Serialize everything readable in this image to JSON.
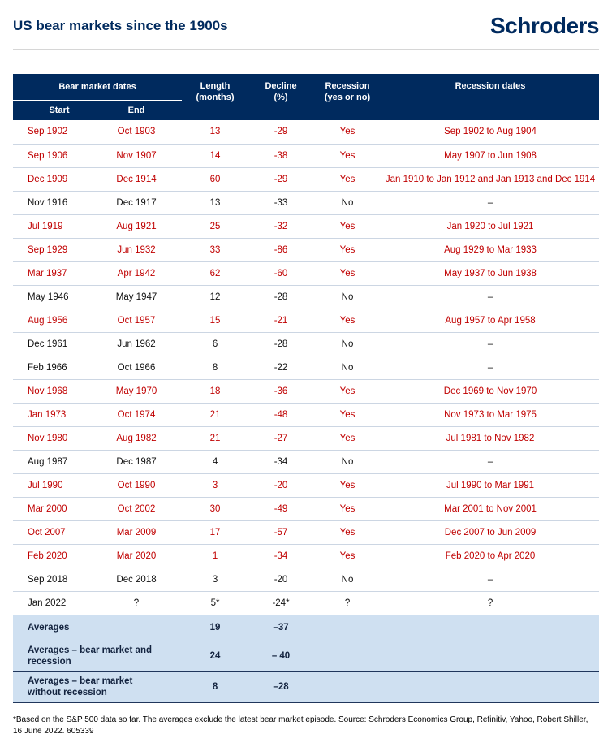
{
  "page": {
    "title": "US bear markets since the 1900s",
    "logo_text": "Schroders",
    "footnote": "*Based on the S&P 500 data so far. The averages exclude the latest bear market episode. Source: Schroders Economics Group, Refinitiv, Yahoo, Robert Shiller, 16 June 2022. 605339"
  },
  "colors": {
    "navy": "#002a5e",
    "red": "#c00000",
    "summary_bg": "#cfe0f1"
  },
  "chart_data": {
    "type": "table",
    "title": "US bear markets since the 1900s",
    "header": {
      "group": "Bear market dates",
      "start": "Start",
      "end": "End",
      "length_line1": "Length",
      "length_line2": "(months)",
      "decline_line1": "Decline",
      "decline_line2": "(%)",
      "recession_line1": "Recession",
      "recession_line2": "(yes or no)",
      "recession_dates": "Recession dates"
    },
    "rows": [
      {
        "start": "Sep 1902",
        "end": "Oct 1903",
        "length": "13",
        "decline": "-29",
        "recession": "Yes",
        "recession_dates": "Sep 1902 to Aug 1904",
        "red": true
      },
      {
        "start": "Sep 1906",
        "end": "Nov 1907",
        "length": "14",
        "decline": "-38",
        "recession": "Yes",
        "recession_dates": "May 1907 to Jun 1908",
        "red": true
      },
      {
        "start": "Dec 1909",
        "end": "Dec 1914",
        "length": "60",
        "decline": "-29",
        "recession": "Yes",
        "recession_dates": "Jan 1910 to Jan 1912 and Jan 1913 and Dec 1914",
        "red": true
      },
      {
        "start": "Nov 1916",
        "end": "Dec 1917",
        "length": "13",
        "decline": "-33",
        "recession": "No",
        "recession_dates": "–",
        "red": false
      },
      {
        "start": "Jul 1919",
        "end": "Aug 1921",
        "length": "25",
        "decline": "-32",
        "recession": "Yes",
        "recession_dates": "Jan 1920 to Jul 1921",
        "red": true
      },
      {
        "start": "Sep 1929",
        "end": "Jun 1932",
        "length": "33",
        "decline": "-86",
        "recession": "Yes",
        "recession_dates": "Aug 1929 to Mar 1933",
        "red": true
      },
      {
        "start": "Mar 1937",
        "end": "Apr 1942",
        "length": "62",
        "decline": "-60",
        "recession": "Yes",
        "recession_dates": "May 1937 to Jun 1938",
        "red": true
      },
      {
        "start": "May 1946",
        "end": "May 1947",
        "length": "12",
        "decline": "-28",
        "recession": "No",
        "recession_dates": "–",
        "red": false
      },
      {
        "start": "Aug 1956",
        "end": "Oct 1957",
        "length": "15",
        "decline": "-21",
        "recession": "Yes",
        "recession_dates": "Aug 1957 to Apr 1958",
        "red": true
      },
      {
        "start": "Dec 1961",
        "end": "Jun 1962",
        "length": "6",
        "decline": "-28",
        "recession": "No",
        "recession_dates": "–",
        "red": false
      },
      {
        "start": "Feb 1966",
        "end": "Oct 1966",
        "length": "8",
        "decline": "-22",
        "recession": "No",
        "recession_dates": "–",
        "red": false
      },
      {
        "start": "Nov 1968",
        "end": "May 1970",
        "length": "18",
        "decline": "-36",
        "recession": "Yes",
        "recession_dates": "Dec 1969 to Nov 1970",
        "red": true
      },
      {
        "start": "Jan 1973",
        "end": "Oct 1974",
        "length": "21",
        "decline": "-48",
        "recession": "Yes",
        "recession_dates": "Nov 1973 to Mar 1975",
        "red": true
      },
      {
        "start": "Nov 1980",
        "end": "Aug 1982",
        "length": "21",
        "decline": "-27",
        "recession": "Yes",
        "recession_dates": "Jul 1981 to Nov 1982",
        "red": true
      },
      {
        "start": "Aug 1987",
        "end": "Dec 1987",
        "length": "4",
        "decline": "-34",
        "recession": "No",
        "recession_dates": "–",
        "red": false
      },
      {
        "start": "Jul 1990",
        "end": "Oct 1990",
        "length": "3",
        "decline": "-20",
        "recession": "Yes",
        "recession_dates": "Jul 1990 to Mar 1991",
        "red": true
      },
      {
        "start": "Mar 2000",
        "end": "Oct 2002",
        "length": "30",
        "decline": "-49",
        "recession": "Yes",
        "recession_dates": "Mar 2001 to Nov 2001",
        "red": true
      },
      {
        "start": "Oct 2007",
        "end": "Mar 2009",
        "length": "17",
        "decline": "-57",
        "recession": "Yes",
        "recession_dates": "Dec 2007 to Jun 2009",
        "red": true
      },
      {
        "start": "Feb 2020",
        "end": "Mar 2020",
        "length": "1",
        "decline": "-34",
        "recession": "Yes",
        "recession_dates": "Feb 2020 to Apr 2020",
        "red": true
      },
      {
        "start": "Sep 2018",
        "end": "Dec 2018",
        "length": "3",
        "decline": "-20",
        "recession": "No",
        "recession_dates": "–",
        "red": false
      },
      {
        "start": "Jan 2022",
        "end": "?",
        "length": "5*",
        "decline": "-24*",
        "recession": "?",
        "recession_dates": "?",
        "red": false
      }
    ],
    "summary_rows": [
      {
        "label": "Averages",
        "length": "19",
        "decline": "–37"
      },
      {
        "label": "Averages – bear market and recession",
        "length": "24",
        "decline": "– 40"
      },
      {
        "label": "Averages – bear market without recession",
        "length": "8",
        "decline": "–28"
      }
    ]
  }
}
